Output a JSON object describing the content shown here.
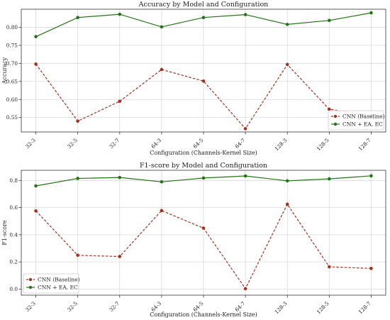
{
  "chart_data": [
    {
      "type": "line",
      "title": "Accuracy by Model and Configuration",
      "xlabel": "Configuration (Channels-Kernel Size)",
      "ylabel": "Accuracy",
      "categories": [
        "32-3",
        "32-5",
        "32-7",
        "64-3",
        "64-5",
        "64-7",
        "128-3",
        "128-5",
        "128-7"
      ],
      "ylim": [
        0.51,
        0.85
      ],
      "yticks": [
        "0.55",
        "0.60",
        "0.65",
        "0.70",
        "0.75",
        "0.80"
      ],
      "grid": true,
      "legend_position": "lower-right",
      "series": [
        {
          "name": "CNN (Baseline)",
          "color": "#a0321e",
          "style": "dashed",
          "values": [
            0.698,
            0.54,
            0.595,
            0.683,
            0.651,
            0.519,
            0.697,
            0.573,
            0.555
          ]
        },
        {
          "name": "CNN + EA, EC",
          "color": "#257317",
          "style": "solid",
          "values": [
            0.774,
            0.827,
            0.836,
            0.801,
            0.827,
            0.835,
            0.808,
            0.819,
            0.84
          ]
        }
      ]
    },
    {
      "type": "line",
      "title": "F1-score by Model and Configuration",
      "xlabel": "Configuration (Channels-Kernel Size)",
      "ylabel": "F1-score",
      "categories": [
        "32-3",
        "32-5",
        "32-7",
        "64-3",
        "64-5",
        "64-7",
        "128-3",
        "128-5",
        "128-7"
      ],
      "ylim": [
        -0.045,
        0.875
      ],
      "yticks": [
        "0.0",
        "0.2",
        "0.4",
        "0.6",
        "0.8"
      ],
      "grid": true,
      "legend_position": "lower-left",
      "series": [
        {
          "name": "CNN (Baseline)",
          "color": "#a0321e",
          "style": "dashed",
          "values": [
            0.576,
            0.249,
            0.24,
            0.578,
            0.449,
            0.003,
            0.625,
            0.164,
            0.152
          ]
        },
        {
          "name": "CNN + EA, EC",
          "color": "#257317",
          "style": "solid",
          "values": [
            0.76,
            0.815,
            0.822,
            0.79,
            0.818,
            0.833,
            0.797,
            0.812,
            0.834
          ]
        }
      ]
    }
  ]
}
